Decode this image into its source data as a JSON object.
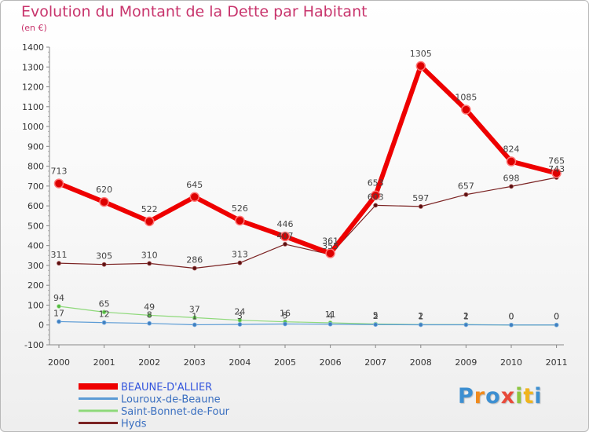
{
  "chart_data": {
    "type": "line",
    "title": "Evolution du Montant de la Dette par Habitant",
    "subtitle": "(en €)",
    "x": [
      "2000",
      "2001",
      "2002",
      "2003",
      "2004",
      "2005",
      "2006",
      "2007",
      "2008",
      "2009",
      "2010",
      "2011"
    ],
    "ylim": [
      -100,
      1400
    ],
    "yticks": [
      -100,
      0,
      100,
      200,
      300,
      400,
      500,
      600,
      700,
      800,
      900,
      1000,
      1100,
      1200,
      1300,
      1400
    ],
    "grid": false,
    "legend_position": "bottom-left",
    "series": [
      {
        "name": "BEAUNE-D'ALLIER",
        "color": "#ee0000",
        "values": [
          713,
          620,
          522,
          645,
          526,
          446,
          361,
          653,
          1305,
          1085,
          824,
          765
        ]
      },
      {
        "name": "Louroux-de-Beaune",
        "color": "#5b9bd5",
        "values": [
          17,
          12,
          8,
          1,
          3,
          5,
          4,
          2,
          1,
          1,
          0,
          0
        ]
      },
      {
        "name": "Saint-Bonnet-de-Four",
        "color": "#8ed97a",
        "values": [
          94,
          65,
          49,
          37,
          24,
          16,
          11,
          5,
          2,
          2,
          0,
          0
        ]
      },
      {
        "name": "Hyds",
        "color": "#7b2323",
        "values": [
          311,
          305,
          310,
          286,
          313,
          407,
          355,
          603,
          597,
          657,
          698,
          743
        ]
      }
    ]
  },
  "logo": {
    "letters": [
      "P",
      "r",
      "o",
      "x",
      "i",
      "t",
      "i"
    ],
    "colors": [
      "#3d8fd1",
      "#f08a1c",
      "#3d8fd1",
      "#e84a3a",
      "#8cc63f",
      "#f0b41c",
      "#3d8fd1"
    ]
  }
}
